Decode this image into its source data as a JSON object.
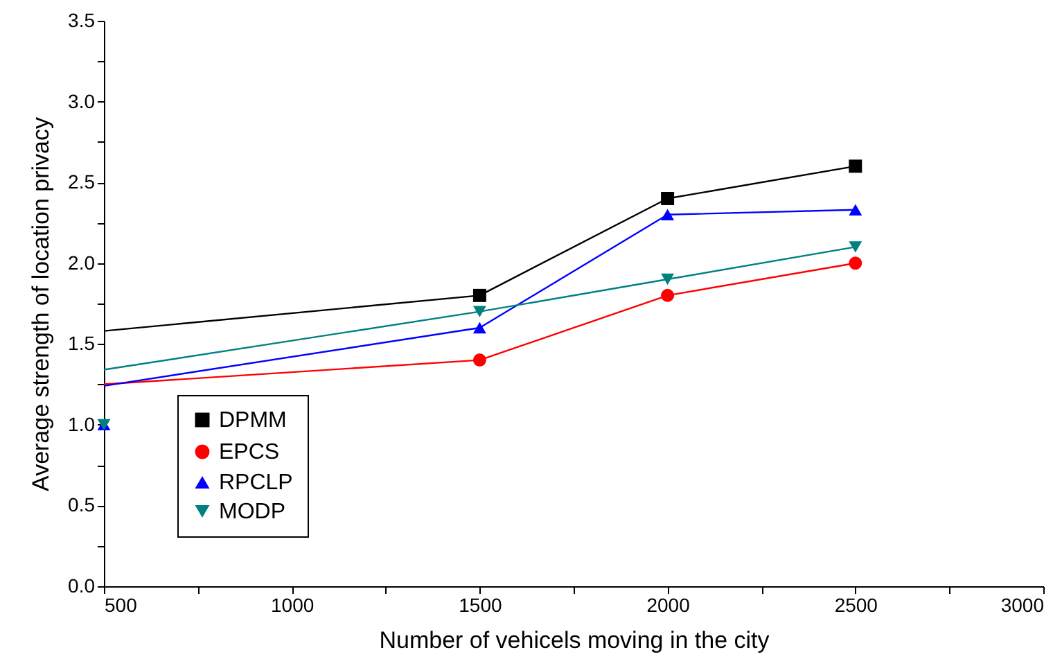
{
  "chart_data": {
    "type": "line",
    "xlabel": "Number of vehicels moving in the city",
    "ylabel": "Average strength of location privacy",
    "xlim": [
      500,
      3000
    ],
    "xticks": [
      500,
      {
        "value": 750,
        "label": null
      },
      1000,
      {
        "value": 1250,
        "label": null
      },
      1500,
      {
        "value": 1750,
        "label": null
      },
      2000,
      {
        "value": 2250,
        "label": null
      },
      2500,
      {
        "value": 2750,
        "label": null
      },
      3000
    ],
    "ylim": [
      0,
      3.5
    ],
    "yticks": [
      {
        "value": 0,
        "label": "0.0"
      },
      {
        "value": 0.25,
        "label": null
      },
      {
        "value": 0.5,
        "label": "0.5"
      },
      {
        "value": 0.75,
        "label": null
      },
      {
        "value": 1,
        "label": "1.0"
      },
      {
        "value": 1.25,
        "label": null
      },
      {
        "value": 1.5,
        "label": "1.5"
      },
      {
        "value": 1.75,
        "label": null
      },
      {
        "value": 2,
        "label": "2.0"
      },
      {
        "value": 2.25,
        "label": null
      },
      {
        "value": 2.5,
        "label": "2.5"
      },
      {
        "value": 2.75,
        "label": null
      },
      {
        "value": 3,
        "label": "3.0"
      },
      {
        "value": 3.25,
        "label": null
      },
      {
        "value": 3.5,
        "label": "3.5"
      }
    ],
    "grid": false,
    "legend": "bottom left",
    "line_style": "solid",
    "series": [
      {
        "name": "DPMM",
        "color": "#000000",
        "marker": "square",
        "x": [
          1500,
          2000,
          2500
        ],
        "values": [
          1.8,
          2.4,
          2.6
        ]
      },
      {
        "name": "EPCS",
        "color": "#ff0000",
        "marker": "circle",
        "x": [
          1500,
          2000,
          2500
        ],
        "values": [
          1.4,
          1.8,
          2.0
        ]
      },
      {
        "name": "RPCLP",
        "color": "#0000ff",
        "marker": "triangle",
        "x": [
          1500,
          2000,
          2500
        ],
        "values": [
          1.6,
          2.3,
          2.33
        ]
      },
      {
        "name": "MODP",
        "color": "#008080",
        "marker": "triangle-down",
        "x": [
          1500,
          2000,
          2500
        ],
        "values": [
          1.7,
          1.9,
          2.1
        ]
      },
      {
        "type": "line",
        "color": "#000000",
        "marker": "none",
        "x": [
          500,
          1500
        ],
        "values": [
          1.58,
          1.8
        ]
      },
      {
        "type": "line",
        "color": "#ff0000",
        "marker": "none",
        "x": [
          500,
          1500
        ],
        "values": [
          1.25,
          1.4
        ]
      },
      {
        "type": "line",
        "color": "#0000ff",
        "marker": "none",
        "x": [
          500,
          1500
        ],
        "values": [
          1.24,
          1.6
        ]
      },
      {
        "type": "line",
        "color": "#008080",
        "marker": "none",
        "x": [
          500,
          1500
        ],
        "values": [
          1.34,
          1.7
        ]
      },
      {
        "type": "scatter",
        "color": "#0000ff",
        "marker": "triangle",
        "x": [
          500
        ],
        "values": [
          1.0
        ]
      },
      {
        "type": "scatter",
        "color": "#008080",
        "marker": "triangle-down",
        "x": [
          500
        ],
        "values": [
          1.0
        ]
      }
    ]
  }
}
